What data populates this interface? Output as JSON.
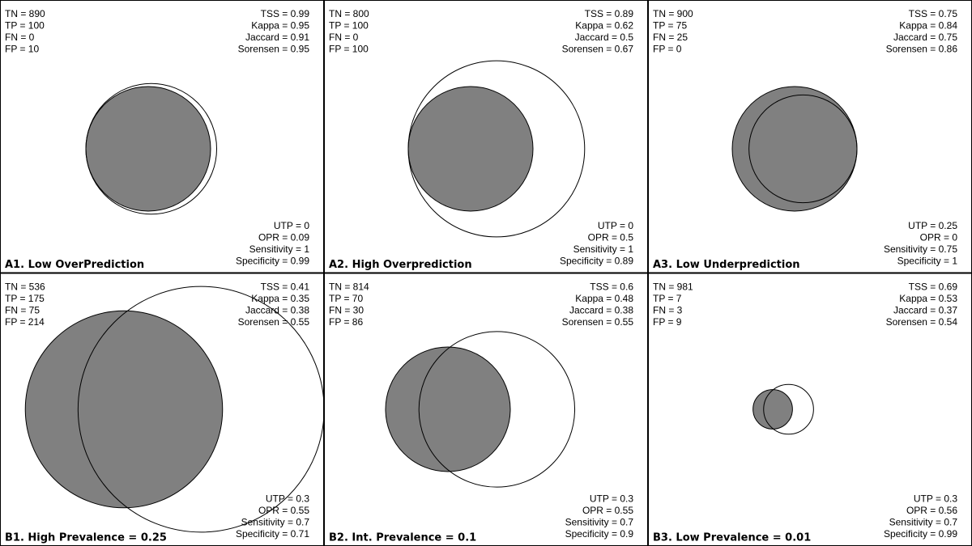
{
  "chart_data": {
    "type": "venn",
    "colors": {
      "observed_fill": "#808080",
      "predicted_fill": "none",
      "stroke": "#000000",
      "background": "#ffffff"
    },
    "panels": [
      {
        "title": "A1. Low OverPrediction",
        "TN": 890,
        "TP": 100,
        "FN": 0,
        "FP": 10,
        "TSS": 0.99,
        "Kappa": 0.95,
        "Jaccard": 0.91,
        "Sorensen": 0.95,
        "UTP": 0,
        "OPR": 0.09,
        "Sensitivity": 1,
        "Specificity": 0.99,
        "labels": {
          "tn": "TN = 890",
          "tp": "TP = 100",
          "fn": "FN = 0",
          "fp": "FP = 10",
          "tss": "TSS = 0.99",
          "kappa": "Kappa = 0.95",
          "jaccard": "Jaccard = 0.91",
          "sorensen": "Sorensen = 0.95",
          "utp": "UTP = 0",
          "opr": "OPR = 0.09",
          "sensitivity": "Sensitivity = 1",
          "specificity": "Specificity = 0.99"
        }
      },
      {
        "title": "A2. High Overprediction",
        "TN": 800,
        "TP": 100,
        "FN": 0,
        "FP": 100,
        "TSS": 0.89,
        "Kappa": 0.62,
        "Jaccard": 0.5,
        "Sorensen": 0.67,
        "UTP": 0,
        "OPR": 0.5,
        "Sensitivity": 1,
        "Specificity": 0.89,
        "labels": {
          "tn": "TN = 800",
          "tp": "TP = 100",
          "fn": "FN = 0",
          "fp": "FP = 100",
          "tss": "TSS = 0.89",
          "kappa": "Kappa = 0.62",
          "jaccard": "Jaccard = 0.5",
          "sorensen": "Sorensen = 0.67",
          "utp": "UTP = 0",
          "opr": "OPR = 0.5",
          "sensitivity": "Sensitivity = 1",
          "specificity": "Specificity = 0.89"
        }
      },
      {
        "title": "A3. Low Underprediction",
        "TN": 900,
        "TP": 75,
        "FN": 25,
        "FP": 0,
        "TSS": 0.75,
        "Kappa": 0.84,
        "Jaccard": 0.75,
        "Sorensen": 0.86,
        "UTP": 0.25,
        "OPR": 0,
        "Sensitivity": 0.75,
        "Specificity": 1,
        "labels": {
          "tn": "TN = 900",
          "tp": "TP = 75",
          "fn": "FN = 25",
          "fp": "FP = 0",
          "tss": "TSS = 0.75",
          "kappa": "Kappa = 0.84",
          "jaccard": "Jaccard = 0.75",
          "sorensen": "Sorensen = 0.86",
          "utp": "UTP = 0.25",
          "opr": "OPR = 0",
          "sensitivity": "Sensitivity = 0.75",
          "specificity": "Specificity = 1"
        }
      },
      {
        "title": "B1. High Prevalence = 0.25",
        "TN": 536,
        "TP": 175,
        "FN": 75,
        "FP": 214,
        "TSS": 0.41,
        "Kappa": 0.35,
        "Jaccard": 0.38,
        "Sorensen": 0.55,
        "UTP": 0.3,
        "OPR": 0.55,
        "Sensitivity": 0.7,
        "Specificity": 0.71,
        "labels": {
          "tn": "TN = 536",
          "tp": "TP = 175",
          "fn": "FN = 75",
          "fp": "FP = 214",
          "tss": "TSS = 0.41",
          "kappa": "Kappa = 0.35",
          "jaccard": "Jaccard = 0.38",
          "sorensen": "Sorensen = 0.55",
          "utp": "UTP = 0.3",
          "opr": "OPR = 0.55",
          "sensitivity": "Sensitivity = 0.7",
          "specificity": "Specificity = 0.71"
        }
      },
      {
        "title": "B2. Int. Prevalence = 0.1",
        "TN": 814,
        "TP": 70,
        "FN": 30,
        "FP": 86,
        "TSS": 0.6,
        "Kappa": 0.48,
        "Jaccard": 0.38,
        "Sorensen": 0.55,
        "UTP": 0.3,
        "OPR": 0.55,
        "Sensitivity": 0.7,
        "Specificity": 0.9,
        "labels": {
          "tn": "TN = 814",
          "tp": "TP = 70",
          "fn": "FN = 30",
          "fp": "FP = 86",
          "tss": "TSS = 0.6",
          "kappa": "Kappa = 0.48",
          "jaccard": "Jaccard = 0.38",
          "sorensen": "Sorensen = 0.55",
          "utp": "UTP = 0.3",
          "opr": "OPR = 0.55",
          "sensitivity": "Sensitivity = 0.7",
          "specificity": "Specificity = 0.9"
        }
      },
      {
        "title": "B3. Low Prevalence = 0.01",
        "TN": 981,
        "TP": 7,
        "FN": 3,
        "FP": 9,
        "TSS": 0.69,
        "Kappa": 0.53,
        "Jaccard": 0.37,
        "Sorensen": 0.54,
        "UTP": 0.3,
        "OPR": 0.56,
        "Sensitivity": 0.7,
        "Specificity": 0.99,
        "labels": {
          "tn": "TN = 981",
          "tp": "TP = 7",
          "fn": "FN = 3",
          "fp": "FP = 9",
          "tss": "TSS = 0.69",
          "kappa": "Kappa = 0.53",
          "jaccard": "Jaccard = 0.37",
          "sorensen": "Sorensen = 0.54",
          "utp": "UTP = 0.3",
          "opr": "OPR = 0.56",
          "sensitivity": "Sensitivity = 0.7",
          "specificity": "Specificity = 0.99"
        }
      }
    ]
  }
}
